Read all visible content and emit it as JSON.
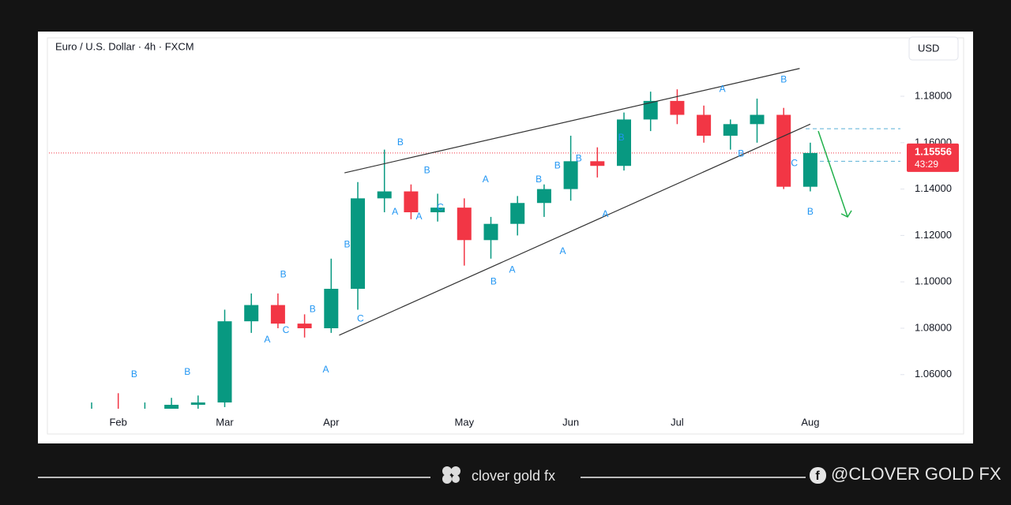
{
  "chart_data": {
    "type": "candlestick",
    "title": "Euro / U.S. Dollar · 4h · FXCM",
    "currency": "USD",
    "categories": [
      null,
      "Feb",
      null,
      null,
      null,
      "Mar",
      null,
      null,
      null,
      "Apr",
      null,
      null,
      null,
      null,
      "May",
      null,
      null,
      null,
      "Jun",
      null,
      null,
      null,
      "Jul",
      null,
      null,
      null,
      null,
      "Aug"
    ],
    "open": [
      1.04,
      1.045,
      1.04,
      1.045,
      1.047,
      1.048,
      1.083,
      1.09,
      1.082,
      1.08,
      1.097,
      1.136,
      1.139,
      1.13,
      1.132,
      1.118,
      1.125,
      1.134,
      1.14,
      1.152,
      1.15,
      1.17,
      1.178,
      1.172,
      1.163,
      1.168,
      1.172,
      1.141
    ],
    "high": [
      1.048,
      1.052,
      1.048,
      1.05,
      1.051,
      1.088,
      1.095,
      1.095,
      1.086,
      1.11,
      1.143,
      1.157,
      1.142,
      1.138,
      1.136,
      1.128,
      1.137,
      1.142,
      1.163,
      1.158,
      1.173,
      1.182,
      1.183,
      1.176,
      1.17,
      1.179,
      1.175,
      1.16
    ],
    "low": [
      1.036,
      1.038,
      1.036,
      1.04,
      1.04,
      1.046,
      1.078,
      1.08,
      1.076,
      1.078,
      1.088,
      1.13,
      1.127,
      1.126,
      1.107,
      1.11,
      1.12,
      1.128,
      1.135,
      1.145,
      1.148,
      1.165,
      1.168,
      1.16,
      1.157,
      1.16,
      1.14,
      1.139
    ],
    "close": [
      1.045,
      1.04,
      1.045,
      1.047,
      1.048,
      1.083,
      1.09,
      1.082,
      1.08,
      1.097,
      1.136,
      1.139,
      1.13,
      1.132,
      1.118,
      1.125,
      1.134,
      1.14,
      1.152,
      1.15,
      1.17,
      1.178,
      1.172,
      1.163,
      1.168,
      1.172,
      1.141,
      1.15556
    ],
    "up_color": "#089981",
    "down_color": "#f23645",
    "ylim": [
      1.0453,
      1.2045
    ],
    "yticks": [
      {
        "value": 1.06,
        "label": "1.06000"
      },
      {
        "value": 1.08,
        "label": "1.08000"
      },
      {
        "value": 1.1,
        "label": "1.10000"
      },
      {
        "value": 1.12,
        "label": "1.12000"
      },
      {
        "value": 1.14,
        "label": "1.14000"
      },
      {
        "value": 1.16,
        "label": "1.16000"
      },
      {
        "value": 1.18,
        "label": "1.18000"
      }
    ],
    "last_price": 1.15556,
    "countdown": "43:29",
    "trendlines": [
      {
        "x": [
          9.5,
          26.6
        ],
        "y": [
          1.147,
          1.192
        ]
      },
      {
        "x": [
          9.3,
          27.0
        ],
        "y": [
          1.077,
          1.168
        ]
      }
    ],
    "forecast": {
      "x": [
        27.3,
        28.4
      ],
      "y": [
        1.165,
        1.128
      ]
    },
    "levels": [
      1.166,
      1.152
    ],
    "annotations": [
      {
        "text": "B",
        "x": 1.6,
        "y": 1.06
      },
      {
        "text": "B",
        "x": 3.6,
        "y": 1.061
      },
      {
        "text": "B",
        "x": 7.2,
        "y": 1.103
      },
      {
        "text": "C",
        "x": 7.3,
        "y": 1.079
      },
      {
        "text": "A",
        "x": 6.6,
        "y": 1.075
      },
      {
        "text": "B",
        "x": 8.3,
        "y": 1.088
      },
      {
        "text": "A",
        "x": 8.8,
        "y": 1.062
      },
      {
        "text": "B",
        "x": 9.6,
        "y": 1.116
      },
      {
        "text": "C",
        "x": 10.1,
        "y": 1.084
      },
      {
        "text": "B",
        "x": 11.6,
        "y": 1.16
      },
      {
        "text": "B",
        "x": 12.6,
        "y": 1.148
      },
      {
        "text": "A",
        "x": 11.4,
        "y": 1.13
      },
      {
        "text": "A",
        "x": 12.3,
        "y": 1.128
      },
      {
        "text": "C",
        "x": 13.1,
        "y": 1.132
      },
      {
        "text": "A",
        "x": 14.8,
        "y": 1.144
      },
      {
        "text": "B",
        "x": 15.1,
        "y": 1.1
      },
      {
        "text": "A",
        "x": 15.8,
        "y": 1.105
      },
      {
        "text": "B",
        "x": 16.8,
        "y": 1.144
      },
      {
        "text": "B",
        "x": 17.5,
        "y": 1.15
      },
      {
        "text": "A",
        "x": 17.7,
        "y": 1.113
      },
      {
        "text": "B",
        "x": 18.3,
        "y": 1.153
      },
      {
        "text": "A",
        "x": 19.3,
        "y": 1.129
      },
      {
        "text": "B",
        "x": 19.9,
        "y": 1.162
      },
      {
        "text": "A",
        "x": 23.7,
        "y": 1.183
      },
      {
        "text": "B",
        "x": 26.0,
        "y": 1.187
      },
      {
        "text": "B",
        "x": 24.4,
        "y": 1.155
      },
      {
        "text": "C",
        "x": 26.4,
        "y": 1.151
      },
      {
        "text": "B",
        "x": 27.0,
        "y": 1.13
      }
    ],
    "brand": "clover gold fx",
    "handle": "@CLOVER GOLD FX"
  }
}
